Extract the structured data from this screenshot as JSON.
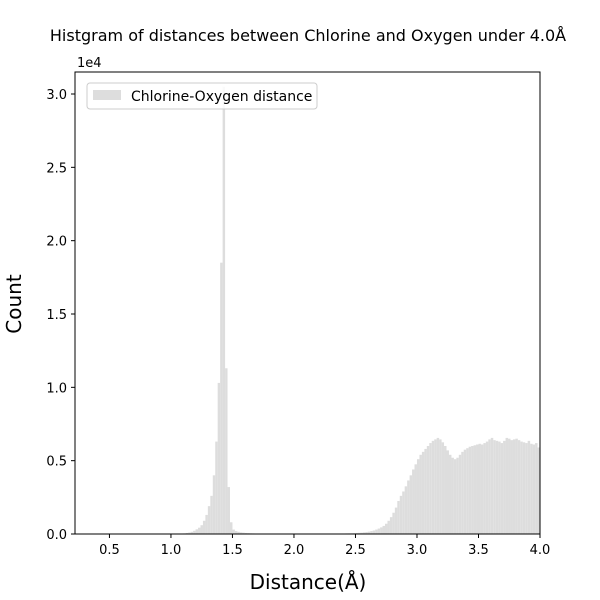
{
  "chart_data": {
    "type": "bar",
    "title": "Histgram of distances between Chlorine and Oxygen under 4.0Å",
    "xlabel": "Distance(Å)",
    "ylabel": "Count",
    "offset_text": "1e4",
    "xlim": [
      0.22,
      4.0
    ],
    "ylim": [
      0,
      31500
    ],
    "x_ticks": [
      0.5,
      1.0,
      1.5,
      2.0,
      2.5,
      3.0,
      3.5,
      4.0
    ],
    "x_tick_labels": [
      "0.5",
      "1.0",
      "1.5",
      "2.0",
      "2.5",
      "3.0",
      "3.5",
      "4.0"
    ],
    "y_ticks": [
      0,
      5000,
      10000,
      15000,
      20000,
      25000,
      30000
    ],
    "y_tick_labels": [
      "0.0",
      "0.5",
      "1.0",
      "1.5",
      "2.0",
      "2.5",
      "3.0"
    ],
    "legend": {
      "position": "top-left",
      "entries": [
        "Chlorine-Oxygen distance"
      ]
    },
    "bar_color": "#dddddd",
    "bin_width": 0.02,
    "bins": [
      [
        1.08,
        20
      ],
      [
        1.1,
        40
      ],
      [
        1.12,
        70
      ],
      [
        1.14,
        100
      ],
      [
        1.16,
        150
      ],
      [
        1.18,
        220
      ],
      [
        1.2,
        320
      ],
      [
        1.22,
        430
      ],
      [
        1.24,
        600
      ],
      [
        1.26,
        900
      ],
      [
        1.28,
        1300
      ],
      [
        1.3,
        1900
      ],
      [
        1.32,
        2600
      ],
      [
        1.34,
        4000
      ],
      [
        1.36,
        6300
      ],
      [
        1.38,
        10300
      ],
      [
        1.4,
        18500
      ],
      [
        1.42,
        30500
      ],
      [
        1.44,
        11300
      ],
      [
        1.46,
        3200
      ],
      [
        1.48,
        800
      ],
      [
        1.5,
        300
      ],
      [
        1.52,
        200
      ],
      [
        1.54,
        150
      ],
      [
        1.56,
        110
      ],
      [
        1.58,
        90
      ],
      [
        1.6,
        70
      ],
      [
        1.62,
        60
      ],
      [
        1.64,
        50
      ],
      [
        1.66,
        40
      ],
      [
        1.68,
        30
      ],
      [
        1.7,
        30
      ],
      [
        1.72,
        20
      ],
      [
        1.74,
        20
      ],
      [
        1.76,
        20
      ],
      [
        1.78,
        15
      ],
      [
        1.8,
        15
      ],
      [
        1.82,
        15
      ],
      [
        1.84,
        10
      ],
      [
        1.86,
        10
      ],
      [
        1.88,
        10
      ],
      [
        1.9,
        10
      ],
      [
        1.92,
        10
      ],
      [
        1.94,
        10
      ],
      [
        1.96,
        10
      ],
      [
        1.98,
        10
      ],
      [
        2.0,
        10
      ],
      [
        2.02,
        10
      ],
      [
        2.04,
        10
      ],
      [
        2.06,
        10
      ],
      [
        2.08,
        10
      ],
      [
        2.1,
        10
      ],
      [
        2.12,
        10
      ],
      [
        2.14,
        10
      ],
      [
        2.16,
        10
      ],
      [
        2.18,
        10
      ],
      [
        2.2,
        10
      ],
      [
        2.22,
        10
      ],
      [
        2.24,
        10
      ],
      [
        2.26,
        10
      ],
      [
        2.28,
        15
      ],
      [
        2.3,
        15
      ],
      [
        2.32,
        20
      ],
      [
        2.34,
        20
      ],
      [
        2.36,
        25
      ],
      [
        2.38,
        30
      ],
      [
        2.4,
        35
      ],
      [
        2.42,
        40
      ],
      [
        2.44,
        45
      ],
      [
        2.46,
        50
      ],
      [
        2.48,
        60
      ],
      [
        2.5,
        70
      ],
      [
        2.52,
        80
      ],
      [
        2.54,
        90
      ],
      [
        2.56,
        110
      ],
      [
        2.58,
        130
      ],
      [
        2.6,
        160
      ],
      [
        2.62,
        200
      ],
      [
        2.64,
        240
      ],
      [
        2.66,
        300
      ],
      [
        2.68,
        370
      ],
      [
        2.7,
        450
      ],
      [
        2.72,
        550
      ],
      [
        2.74,
        700
      ],
      [
        2.76,
        900
      ],
      [
        2.78,
        1150
      ],
      [
        2.8,
        1450
      ],
      [
        2.82,
        1800
      ],
      [
        2.84,
        2250
      ],
      [
        2.86,
        2600
      ],
      [
        2.88,
        2900
      ],
      [
        2.9,
        3250
      ],
      [
        2.92,
        3650
      ],
      [
        2.94,
        4000
      ],
      [
        2.96,
        4400
      ],
      [
        2.98,
        4750
      ],
      [
        3.0,
        5100
      ],
      [
        3.02,
        5400
      ],
      [
        3.04,
        5600
      ],
      [
        3.06,
        5800
      ],
      [
        3.08,
        6000
      ],
      [
        3.1,
        6200
      ],
      [
        3.12,
        6350
      ],
      [
        3.14,
        6450
      ],
      [
        3.16,
        6550
      ],
      [
        3.18,
        6450
      ],
      [
        3.2,
        6250
      ],
      [
        3.22,
        6000
      ],
      [
        3.24,
        5700
      ],
      [
        3.26,
        5400
      ],
      [
        3.28,
        5200
      ],
      [
        3.3,
        5100
      ],
      [
        3.32,
        5200
      ],
      [
        3.34,
        5400
      ],
      [
        3.36,
        5600
      ],
      [
        3.38,
        5750
      ],
      [
        3.4,
        5850
      ],
      [
        3.42,
        5950
      ],
      [
        3.44,
        6000
      ],
      [
        3.46,
        6050
      ],
      [
        3.48,
        6100
      ],
      [
        3.5,
        6150
      ],
      [
        3.52,
        6100
      ],
      [
        3.54,
        6200
      ],
      [
        3.56,
        6300
      ],
      [
        3.58,
        6450
      ],
      [
        3.6,
        6550
      ],
      [
        3.62,
        6400
      ],
      [
        3.64,
        6350
      ],
      [
        3.66,
        6300
      ],
      [
        3.68,
        6200
      ],
      [
        3.7,
        6350
      ],
      [
        3.72,
        6550
      ],
      [
        3.74,
        6500
      ],
      [
        3.76,
        6400
      ],
      [
        3.78,
        6450
      ],
      [
        3.8,
        6500
      ],
      [
        3.82,
        6400
      ],
      [
        3.84,
        6300
      ],
      [
        3.86,
        6250
      ],
      [
        3.88,
        6200
      ],
      [
        3.9,
        6350
      ],
      [
        3.92,
        6150
      ],
      [
        3.94,
        6100
      ],
      [
        3.96,
        6200
      ],
      [
        3.98,
        5900
      ]
    ]
  }
}
